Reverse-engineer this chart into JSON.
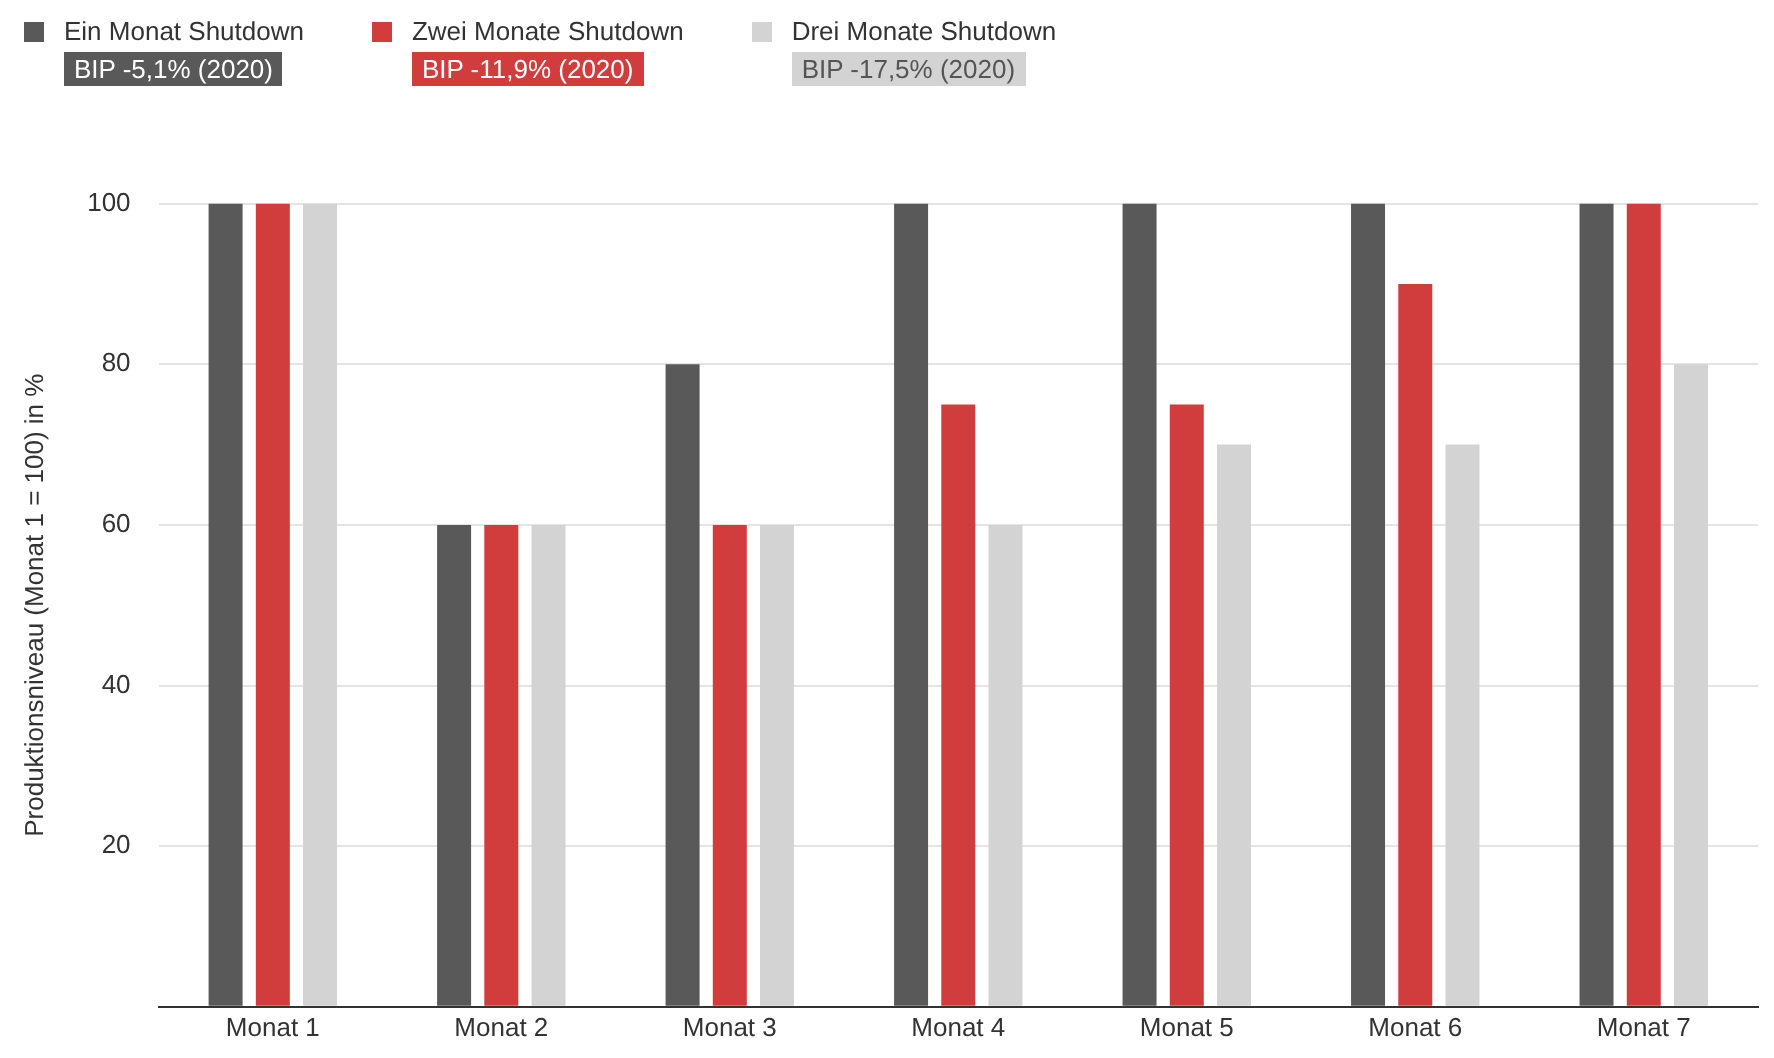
{
  "chart_data": {
    "type": "bar",
    "ylabel": "Produktionsniveau (Monat 1 = 100) in %",
    "categories": [
      "Monat 1",
      "Monat 2",
      "Monat 3",
      "Monat 4",
      "Monat 5",
      "Monat 6",
      "Monat 7"
    ],
    "series": [
      {
        "name": "Ein Monat Shutdown",
        "color": "#595959",
        "values": [
          100,
          60,
          80,
          100,
          100,
          100,
          100
        ]
      },
      {
        "name": "Zwei Monate Shutdown",
        "color": "#d13c3c",
        "values": [
          100,
          60,
          60,
          75,
          75,
          90,
          100
        ]
      },
      {
        "name": "Drei Monate Shutdown",
        "color": "#d3d3d3",
        "values": [
          100,
          60,
          60,
          60,
          70,
          70,
          80
        ]
      }
    ],
    "annotations": [
      "BIP -5,1% (2020)",
      "BIP -11,9% (2020)",
      "BIP -17,5% (2020)"
    ],
    "ylim": [
      0,
      100
    ],
    "yticks": [
      {
        "value": 0,
        "label": null
      },
      20,
      40,
      60,
      80,
      100
    ],
    "grid": "y",
    "legend": "top left"
  }
}
